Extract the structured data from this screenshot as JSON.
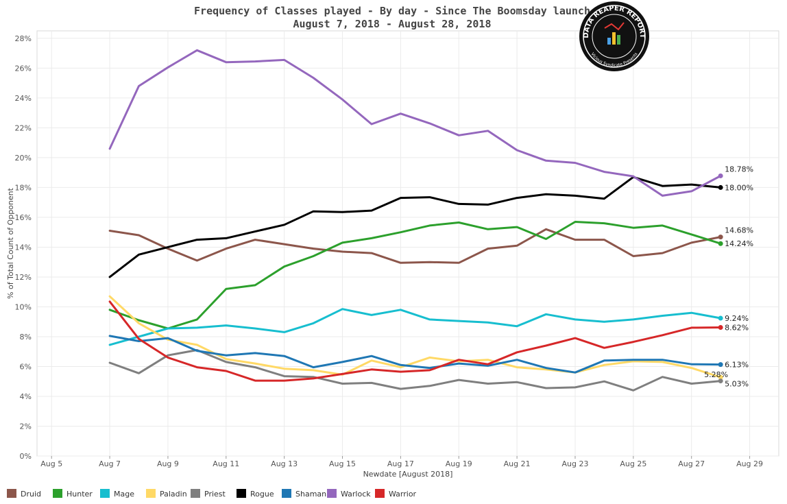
{
  "chart_data": {
    "type": "line",
    "title": "Frequency of Classes played - By day - Since The Boomsday launch",
    "subtitle": "August 7, 2018 - August 28, 2018",
    "xlabel": "Newdate [August 2018]",
    "ylabel": "% of Total Count of Opponent",
    "xlim": [
      4.5,
      30
    ],
    "ylim": [
      0,
      28.5
    ],
    "x_ticks": [
      5,
      7,
      9,
      11,
      13,
      15,
      17,
      19,
      21,
      23,
      25,
      27,
      29
    ],
    "x_tick_labels": [
      "Aug 5",
      "Aug 7",
      "Aug 9",
      "Aug 11",
      "Aug 13",
      "Aug 15",
      "Aug 17",
      "Aug 19",
      "Aug 21",
      "Aug 23",
      "Aug 25",
      "Aug 27",
      "Aug 29"
    ],
    "y_ticks": [
      0,
      2,
      4,
      6,
      8,
      10,
      12,
      14,
      16,
      18,
      20,
      22,
      24,
      26,
      28
    ],
    "y_tick_labels": [
      "0%",
      "2%",
      "4%",
      "6%",
      "8%",
      "10%",
      "12%",
      "14%",
      "16%",
      "18%",
      "20%",
      "22%",
      "24%",
      "26%",
      "28%"
    ],
    "grid": true,
    "legend_position": "bottom",
    "x": [
      7,
      8,
      9,
      10,
      11,
      12,
      13,
      14,
      15,
      16,
      17,
      18,
      19,
      20,
      21,
      22,
      23,
      24,
      25,
      26,
      27,
      28
    ],
    "series": [
      {
        "name": "Druid",
        "color": "#8c564b",
        "end_label": "14.68%",
        "values": [
          15.1,
          14.8,
          13.9,
          13.1,
          13.9,
          14.5,
          14.2,
          13.9,
          13.7,
          13.6,
          12.95,
          13.0,
          12.95,
          13.9,
          14.1,
          15.2,
          14.5,
          14.5,
          13.4,
          13.6,
          14.3,
          14.68
        ]
      },
      {
        "name": "Hunter",
        "color": "#2ca02c",
        "end_label": "14.24%",
        "values": [
          9.8,
          9.1,
          8.55,
          9.15,
          11.2,
          11.45,
          12.7,
          13.4,
          14.3,
          14.6,
          15.0,
          15.45,
          15.65,
          15.2,
          15.35,
          14.55,
          15.7,
          15.6,
          15.3,
          15.45,
          14.85,
          14.24
        ]
      },
      {
        "name": "Mage",
        "color": "#17becf",
        "end_label": "9.24%",
        "values": [
          7.45,
          8.0,
          8.55,
          8.6,
          8.75,
          8.55,
          8.3,
          8.9,
          9.85,
          9.45,
          9.8,
          9.15,
          9.05,
          8.95,
          8.7,
          9.5,
          9.15,
          9.0,
          9.15,
          9.4,
          9.6,
          9.24
        ]
      },
      {
        "name": "Paladin",
        "color": "#ffd966",
        "end_label": "5.28%",
        "values": [
          10.7,
          8.9,
          7.8,
          7.45,
          6.5,
          6.2,
          5.85,
          5.75,
          5.45,
          6.4,
          5.95,
          6.6,
          6.35,
          6.45,
          5.95,
          5.8,
          5.6,
          6.1,
          6.35,
          6.3,
          5.9,
          5.28
        ]
      },
      {
        "name": "Priest",
        "color": "#7f7f7f",
        "end_label": "5.03%",
        "values": [
          6.25,
          5.55,
          6.75,
          7.1,
          6.3,
          5.95,
          5.35,
          5.3,
          4.85,
          4.9,
          4.5,
          4.7,
          5.1,
          4.85,
          4.95,
          4.55,
          4.6,
          5.0,
          4.4,
          5.3,
          4.85,
          5.03
        ]
      },
      {
        "name": "Rogue",
        "color": "#000000",
        "end_label": "18.00%",
        "values": [
          12.0,
          13.5,
          14.0,
          14.5,
          14.6,
          15.05,
          15.5,
          16.4,
          16.35,
          16.45,
          17.3,
          17.35,
          16.9,
          16.85,
          17.3,
          17.55,
          17.45,
          17.25,
          18.7,
          18.1,
          18.2,
          18.0
        ]
      },
      {
        "name": "Shaman",
        "color": "#1f77b4",
        "end_label": "6.13%",
        "values": [
          8.05,
          7.7,
          7.9,
          7.05,
          6.75,
          6.9,
          6.7,
          5.95,
          6.3,
          6.7,
          6.1,
          5.9,
          6.2,
          6.05,
          6.45,
          5.9,
          5.6,
          6.4,
          6.45,
          6.45,
          6.15,
          6.13
        ]
      },
      {
        "name": "Warlock",
        "color": "#9467bd",
        "end_label": "18.78%",
        "values": [
          20.6,
          24.8,
          26.05,
          27.2,
          26.4,
          26.45,
          26.55,
          25.35,
          23.9,
          22.25,
          22.95,
          22.3,
          21.5,
          21.8,
          20.5,
          19.8,
          19.65,
          19.05,
          18.75,
          17.45,
          17.75,
          18.78
        ]
      },
      {
        "name": "Warrior",
        "color": "#d62728",
        "end_label": "8.62%",
        "values": [
          10.35,
          7.85,
          6.6,
          5.95,
          5.7,
          5.05,
          5.05,
          5.2,
          5.5,
          5.8,
          5.65,
          5.75,
          6.45,
          6.15,
          6.95,
          7.4,
          7.9,
          7.25,
          7.65,
          8.1,
          8.6,
          8.62
        ]
      }
    ]
  },
  "logo": {
    "text_top": "DATA REAPER REPORT",
    "text_bottom": "Vicious Syndicate Presents"
  }
}
